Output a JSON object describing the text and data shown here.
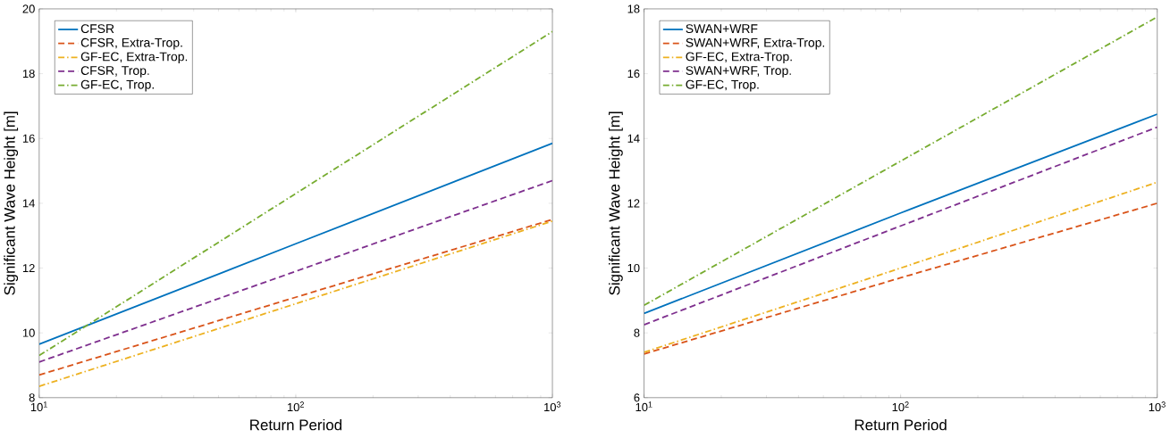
{
  "chart_data": [
    {
      "type": "line",
      "xlabel": "Return Period",
      "ylabel": "Significant Wave Height [m]",
      "log": "x",
      "x": [
        10,
        100,
        1000
      ],
      "xlim": [
        10,
        1000
      ],
      "xticks": [
        {
          "value": 10,
          "label": "10$^{1}$"
        },
        {
          "value": 100,
          "label": "10$^{2}$"
        },
        {
          "value": 1000,
          "label": "10$^{3}$"
        }
      ],
      "ylim": [
        8,
        20
      ],
      "yticks": [
        8,
        10,
        12,
        14,
        16,
        18,
        20
      ],
      "legend": "top left",
      "series": [
        {
          "name": "CFSR",
          "color": "#0072bd",
          "line_style": "solid",
          "values": [
            9.65,
            12.75,
            15.85
          ]
        },
        {
          "name": "CFSR, Extra-Trop.",
          "color": "#d95319",
          "line_style": "dashed",
          "values": [
            8.7,
            11.1,
            13.5
          ]
        },
        {
          "name": "GF-EC, Extra-Trop.",
          "color": "#edb120",
          "line_style": "dashdot",
          "values": [
            8.35,
            10.9,
            13.45
          ]
        },
        {
          "name": "CFSR, Trop.",
          "color": "#7e2f8e",
          "line_style": "dashed",
          "values": [
            9.1,
            11.9,
            14.7
          ]
        },
        {
          "name": "GF-EC, Trop.",
          "color": "#77ac30",
          "line_style": "dashdot",
          "values": [
            9.3,
            14.3,
            19.3
          ]
        }
      ]
    },
    {
      "type": "line",
      "xlabel": "Return Period",
      "ylabel": "Significant Wave Height [m]",
      "log": "x",
      "x": [
        10,
        100,
        1000
      ],
      "xlim": [
        10,
        1000
      ],
      "xticks": [
        {
          "value": 10,
          "label": "10$^{1}$"
        },
        {
          "value": 100,
          "label": "10$^{2}$"
        },
        {
          "value": 1000,
          "label": "10$^{3}$"
        }
      ],
      "ylim": [
        6,
        18
      ],
      "yticks": [
        6,
        8,
        10,
        12,
        14,
        16,
        18
      ],
      "legend": "top left",
      "series": [
        {
          "name": "SWAN+WRF",
          "color": "#0072bd",
          "line_style": "solid",
          "values": [
            8.6,
            11.7,
            14.75
          ]
        },
        {
          "name": "SWAN+WRF, Extra-Trop.",
          "color": "#d95319",
          "line_style": "dashed",
          "values": [
            7.35,
            9.7,
            12.0
          ]
        },
        {
          "name": "GF-EC, Extra-Trop.",
          "color": "#edb120",
          "line_style": "dashdot",
          "values": [
            7.4,
            10.0,
            12.65
          ]
        },
        {
          "name": "SWAN+WRF, Trop.",
          "color": "#7e2f8e",
          "line_style": "dashed",
          "values": [
            8.25,
            11.3,
            14.35
          ]
        },
        {
          "name": "GF-EC, Trop.",
          "color": "#77ac30",
          "line_style": "dashdot",
          "values": [
            8.85,
            13.3,
            17.75
          ]
        }
      ]
    }
  ]
}
